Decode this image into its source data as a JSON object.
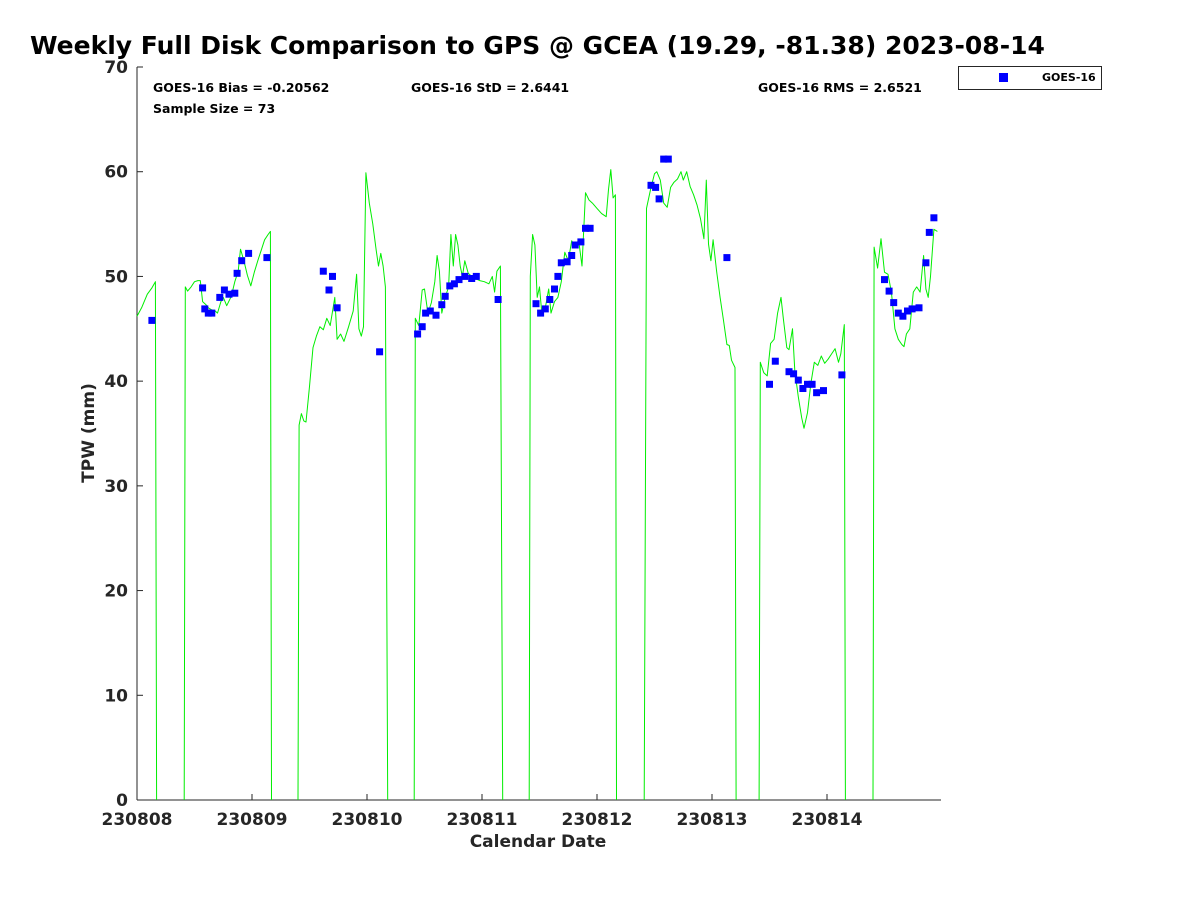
{
  "chart_data": {
    "type": "scatter",
    "title": "Weekly Full Disk Comparison to GPS @ GCEA (19.29, -81.38) 2023-08-14",
    "xlabel": "Calendar Date",
    "ylabel": "TPW (mm)",
    "xlim": [
      230808,
      230815
    ],
    "ylim": [
      0,
      70
    ],
    "grid": false,
    "x_ticks": [
      "230808",
      "230809",
      "230810",
      "230811",
      "230812",
      "230813",
      "230814"
    ],
    "y_ticks": [
      0,
      10,
      20,
      30,
      40,
      50,
      60,
      70
    ],
    "stats": {
      "bias": "GOES-16 Bias = -0.20562",
      "std": "GOES-16 StD = 2.6441",
      "rms": "GOES-16 RMS = 2.6521",
      "sample": "Sample Size = 73"
    },
    "legend": {
      "position": "outside-top-right",
      "entries": [
        "GOES-16"
      ]
    },
    "colors": {
      "goes16": "#0000ff",
      "gps": "#00ee00"
    },
    "series": [
      {
        "name": "GOES-16",
        "marker": "square",
        "points": [
          [
            0.13,
            45.8
          ],
          [
            0.57,
            48.9
          ],
          [
            0.59,
            46.9
          ],
          [
            0.62,
            46.5
          ],
          [
            0.65,
            46.5
          ],
          [
            0.72,
            48.0
          ],
          [
            0.76,
            48.7
          ],
          [
            0.8,
            48.3
          ],
          [
            0.85,
            48.4
          ],
          [
            0.87,
            50.3
          ],
          [
            0.91,
            51.5
          ],
          [
            0.97,
            52.2
          ],
          [
            1.13,
            51.8
          ],
          [
            1.62,
            50.5
          ],
          [
            1.67,
            48.7
          ],
          [
            1.7,
            50.0
          ],
          [
            1.74,
            47.0
          ],
          [
            2.11,
            42.8
          ],
          [
            2.44,
            44.5
          ],
          [
            2.48,
            45.2
          ],
          [
            2.51,
            46.5
          ],
          [
            2.55,
            46.7
          ],
          [
            2.6,
            46.3
          ],
          [
            2.65,
            47.3
          ],
          [
            2.68,
            48.1
          ],
          [
            2.72,
            49.1
          ],
          [
            2.76,
            49.3
          ],
          [
            2.8,
            49.7
          ],
          [
            2.85,
            50.0
          ],
          [
            2.91,
            49.8
          ],
          [
            2.95,
            50.0
          ],
          [
            3.14,
            47.8
          ],
          [
            3.47,
            47.4
          ],
          [
            3.51,
            46.5
          ],
          [
            3.55,
            46.9
          ],
          [
            3.59,
            47.8
          ],
          [
            3.63,
            48.8
          ],
          [
            3.66,
            50.0
          ],
          [
            3.69,
            51.3
          ],
          [
            3.74,
            51.4
          ],
          [
            3.78,
            52.0
          ],
          [
            3.81,
            53.0
          ],
          [
            3.86,
            53.3
          ],
          [
            3.9,
            54.6
          ],
          [
            3.94,
            54.6
          ],
          [
            4.47,
            58.7
          ],
          [
            4.51,
            58.5
          ],
          [
            4.54,
            57.4
          ],
          [
            4.58,
            61.2
          ],
          [
            4.62,
            61.2
          ],
          [
            5.13,
            51.8
          ],
          [
            5.5,
            39.7
          ],
          [
            5.55,
            41.9
          ],
          [
            5.67,
            40.9
          ],
          [
            5.71,
            40.7
          ],
          [
            5.75,
            40.1
          ],
          [
            5.79,
            39.3
          ],
          [
            5.83,
            39.7
          ],
          [
            5.87,
            39.7
          ],
          [
            5.91,
            38.9
          ],
          [
            5.97,
            39.1
          ],
          [
            6.13,
            40.6
          ],
          [
            6.5,
            49.7
          ],
          [
            6.54,
            48.6
          ],
          [
            6.58,
            47.5
          ],
          [
            6.62,
            46.5
          ],
          [
            6.66,
            46.2
          ],
          [
            6.7,
            46.7
          ],
          [
            6.74,
            46.9
          ],
          [
            6.8,
            47.0
          ],
          [
            6.86,
            51.3
          ],
          [
            6.89,
            54.2
          ],
          [
            6.93,
            55.6
          ]
        ]
      },
      {
        "name": "GPS",
        "style": "line",
        "segments": [
          [
            [
              0.0,
              46.2
            ],
            [
              0.04,
              47.0
            ],
            [
              0.09,
              48.3
            ],
            [
              0.13,
              48.9
            ],
            [
              0.16,
              49.5
            ],
            [
              0.17,
              0
            ]
          ],
          [
            [
              0.41,
              0
            ],
            [
              0.42,
              49.0
            ],
            [
              0.44,
              48.6
            ],
            [
              0.47,
              49.0
            ],
            [
              0.5,
              49.5
            ],
            [
              0.53,
              49.6
            ],
            [
              0.55,
              49.6
            ],
            [
              0.57,
              47.6
            ],
            [
              0.6,
              47.3
            ],
            [
              0.62,
              47.0
            ],
            [
              0.65,
              46.8
            ],
            [
              0.68,
              46.7
            ],
            [
              0.7,
              46.5
            ],
            [
              0.73,
              47.6
            ],
            [
              0.75,
              48.0
            ],
            [
              0.78,
              47.2
            ],
            [
              0.82,
              48.1
            ],
            [
              0.85,
              49.5
            ],
            [
              0.88,
              50.5
            ],
            [
              0.9,
              52.6
            ],
            [
              0.93,
              51.5
            ],
            [
              0.96,
              50.1
            ],
            [
              0.99,
              49.1
            ],
            [
              1.02,
              50.4
            ],
            [
              1.05,
              51.5
            ],
            [
              1.08,
              52.5
            ],
            [
              1.11,
              53.5
            ],
            [
              1.14,
              54.0
            ],
            [
              1.16,
              54.3
            ],
            [
              1.17,
              0
            ]
          ],
          [
            [
              1.4,
              0
            ],
            [
              1.41,
              35.8
            ],
            [
              1.43,
              36.9
            ],
            [
              1.45,
              36.2
            ],
            [
              1.47,
              36.1
            ],
            [
              1.5,
              39.5
            ],
            [
              1.53,
              43.2
            ],
            [
              1.56,
              44.3
            ],
            [
              1.59,
              45.2
            ],
            [
              1.62,
              44.9
            ],
            [
              1.65,
              46.0
            ],
            [
              1.68,
              45.3
            ],
            [
              1.72,
              48.0
            ],
            [
              1.74,
              44.0
            ],
            [
              1.77,
              44.5
            ],
            [
              1.8,
              43.8
            ],
            [
              1.84,
              45.2
            ],
            [
              1.88,
              46.7
            ],
            [
              1.91,
              50.2
            ],
            [
              1.93,
              45.0
            ],
            [
              1.95,
              44.3
            ],
            [
              1.97,
              45.2
            ],
            [
              1.99,
              59.9
            ],
            [
              2.02,
              57.0
            ],
            [
              2.05,
              55.0
            ],
            [
              2.08,
              52.5
            ],
            [
              2.1,
              51.0
            ],
            [
              2.12,
              52.2
            ],
            [
              2.14,
              51.0
            ],
            [
              2.16,
              49.0
            ],
            [
              2.18,
              0
            ]
          ],
          [
            [
              2.41,
              0
            ],
            [
              2.42,
              46.0
            ],
            [
              2.45,
              45.3
            ],
            [
              2.48,
              48.7
            ],
            [
              2.5,
              48.8
            ],
            [
              2.53,
              46.5
            ],
            [
              2.56,
              47.5
            ],
            [
              2.59,
              49.5
            ],
            [
              2.61,
              52.0
            ],
            [
              2.63,
              50.5
            ],
            [
              2.65,
              46.5
            ],
            [
              2.68,
              48.0
            ],
            [
              2.71,
              49.0
            ],
            [
              2.73,
              54.0
            ],
            [
              2.75,
              51.0
            ],
            [
              2.77,
              54.0
            ],
            [
              2.79,
              53.0
            ],
            [
              2.81,
              51.0
            ],
            [
              2.83,
              50.0
            ],
            [
              2.85,
              51.5
            ],
            [
              2.88,
              50.3
            ],
            [
              2.91,
              50.0
            ],
            [
              2.94,
              49.8
            ],
            [
              2.98,
              49.6
            ],
            [
              3.02,
              49.5
            ],
            [
              3.06,
              49.3
            ],
            [
              3.09,
              50.0
            ],
            [
              3.11,
              48.5
            ],
            [
              3.13,
              50.5
            ],
            [
              3.16,
              51.0
            ],
            [
              3.18,
              0
            ]
          ],
          [
            [
              3.41,
              0
            ],
            [
              3.42,
              50.0
            ],
            [
              3.44,
              54.0
            ],
            [
              3.46,
              53.0
            ],
            [
              3.48,
              48.0
            ],
            [
              3.5,
              49.0
            ],
            [
              3.52,
              46.5
            ],
            [
              3.55,
              47.0
            ],
            [
              3.58,
              48.8
            ],
            [
              3.6,
              46.5
            ],
            [
              3.63,
              47.6
            ],
            [
              3.66,
              48.0
            ],
            [
              3.69,
              49.5
            ],
            [
              3.72,
              52.3
            ],
            [
              3.75,
              51.5
            ],
            [
              3.78,
              53.4
            ],
            [
              3.81,
              52.8
            ],
            [
              3.84,
              53.5
            ],
            [
              3.87,
              51.0
            ],
            [
              3.9,
              58.0
            ],
            [
              3.93,
              57.3
            ],
            [
              3.96,
              57.0
            ],
            [
              4.0,
              56.5
            ],
            [
              4.04,
              56.0
            ],
            [
              4.08,
              55.7
            ],
            [
              4.1,
              58.3
            ],
            [
              4.12,
              60.2
            ],
            [
              4.14,
              57.5
            ],
            [
              4.16,
              57.8
            ],
            [
              4.17,
              0
            ]
          ],
          [
            [
              4.41,
              0
            ],
            [
              4.43,
              56.5
            ],
            [
              4.47,
              58.5
            ],
            [
              4.5,
              59.8
            ],
            [
              4.52,
              60.0
            ],
            [
              4.55,
              59.2
            ],
            [
              4.58,
              57.0
            ],
            [
              4.61,
              56.6
            ],
            [
              4.64,
              58.5
            ],
            [
              4.67,
              59.0
            ],
            [
              4.7,
              59.3
            ],
            [
              4.73,
              60.0
            ],
            [
              4.75,
              59.2
            ],
            [
              4.78,
              60.0
            ],
            [
              4.81,
              58.6
            ],
            [
              4.84,
              57.8
            ],
            [
              4.87,
              56.8
            ],
            [
              4.9,
              55.5
            ],
            [
              4.93,
              53.6
            ],
            [
              4.95,
              59.2
            ],
            [
              4.97,
              53.1
            ],
            [
              4.99,
              51.5
            ],
            [
              5.01,
              53.5
            ],
            [
              5.04,
              50.5
            ],
            [
              5.07,
              48.0
            ],
            [
              5.1,
              45.8
            ],
            [
              5.13,
              43.5
            ],
            [
              5.15,
              43.4
            ],
            [
              5.17,
              42.0
            ],
            [
              5.2,
              41.3
            ],
            [
              5.21,
              0
            ]
          ],
          [
            [
              5.41,
              0
            ],
            [
              5.42,
              41.8
            ],
            [
              5.45,
              40.8
            ],
            [
              5.48,
              40.5
            ],
            [
              5.51,
              43.6
            ],
            [
              5.54,
              44.0
            ],
            [
              5.57,
              46.5
            ],
            [
              5.6,
              48.0
            ],
            [
              5.62,
              46.0
            ],
            [
              5.65,
              43.2
            ],
            [
              5.67,
              43.0
            ],
            [
              5.7,
              45.0
            ],
            [
              5.72,
              41.0
            ],
            [
              5.75,
              38.5
            ],
            [
              5.78,
              36.5
            ],
            [
              5.8,
              35.5
            ],
            [
              5.83,
              37.0
            ],
            [
              5.86,
              39.8
            ],
            [
              5.89,
              41.8
            ],
            [
              5.92,
              41.5
            ],
            [
              5.95,
              42.4
            ],
            [
              5.98,
              41.7
            ],
            [
              6.01,
              42.1
            ],
            [
              6.04,
              42.6
            ],
            [
              6.07,
              43.1
            ],
            [
              6.1,
              41.8
            ],
            [
              6.12,
              42.6
            ],
            [
              6.15,
              45.4
            ],
            [
              6.16,
              0
            ]
          ],
          [
            [
              6.4,
              0
            ],
            [
              6.41,
              52.8
            ],
            [
              6.44,
              50.8
            ],
            [
              6.47,
              53.6
            ],
            [
              6.5,
              50.4
            ],
            [
              6.53,
              50.2
            ],
            [
              6.56,
              48.5
            ],
            [
              6.59,
              45.0
            ],
            [
              6.62,
              44.0
            ],
            [
              6.65,
              43.5
            ],
            [
              6.67,
              43.3
            ],
            [
              6.69,
              44.5
            ],
            [
              6.72,
              45.0
            ],
            [
              6.75,
              48.5
            ],
            [
              6.78,
              49.0
            ],
            [
              6.81,
              48.5
            ],
            [
              6.84,
              52.0
            ],
            [
              6.86,
              48.8
            ],
            [
              6.88,
              48.0
            ],
            [
              6.9,
              50.0
            ],
            [
              6.93,
              54.5
            ],
            [
              6.96,
              54.3
            ]
          ]
        ]
      }
    ]
  }
}
